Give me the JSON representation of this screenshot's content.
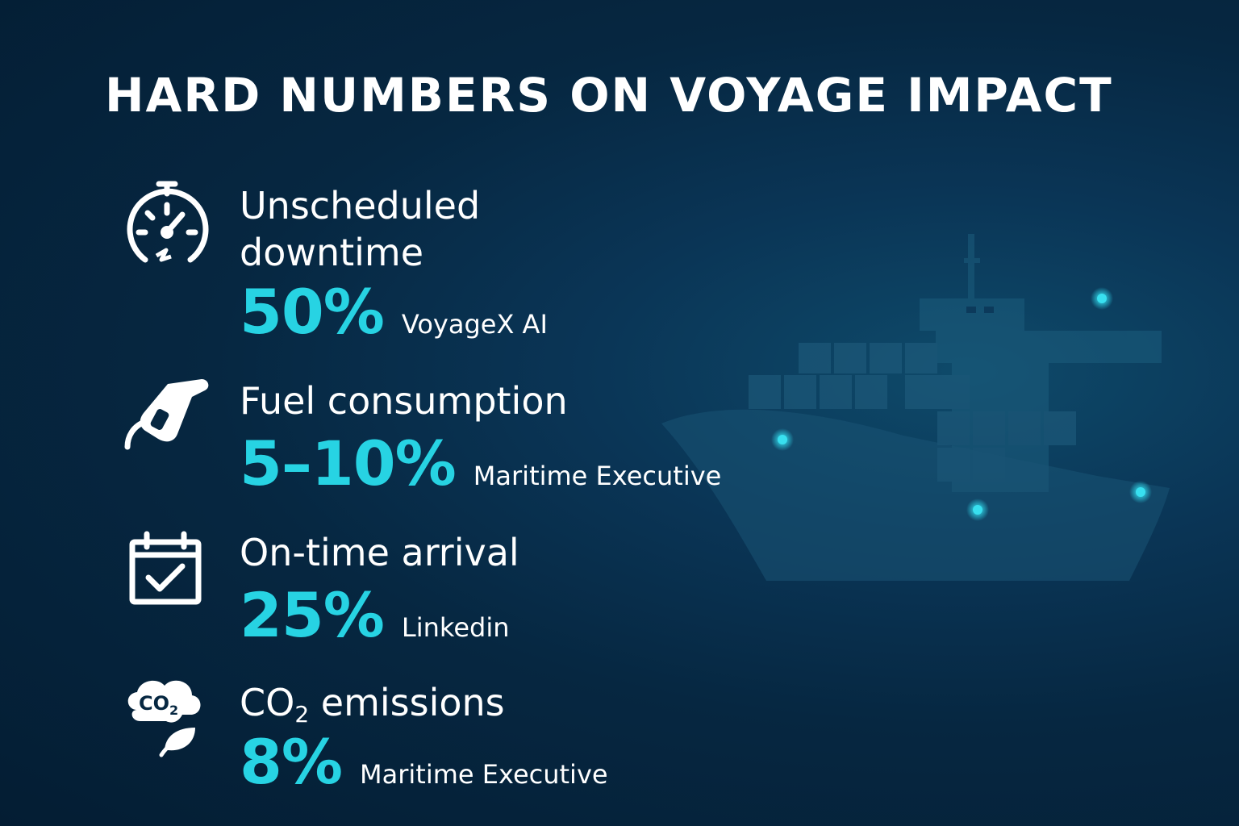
{
  "title": "HARD NUMBERS ON VOYAGE IMPACT",
  "colors": {
    "accent": "#27d3e3",
    "background": "#062741",
    "text": "#ffffff"
  },
  "metrics": [
    {
      "icon": "stopwatch-icon",
      "label_line1": "Unscheduled",
      "label_line2": "downtime",
      "value": "50%",
      "source": "VoyageX AI"
    },
    {
      "icon": "fuel-nozzle-icon",
      "label_line1": "Fuel consumption",
      "value": "5–10%",
      "source": "Maritime Executive"
    },
    {
      "icon": "calendar-check-icon",
      "label_line1": "On-time arrival",
      "value": "25%",
      "source": "Linkedin"
    },
    {
      "icon": "co2-leaf-icon",
      "label_prefix": "CO",
      "label_sub": "2",
      "label_suffix": " emissions",
      "value": "8%",
      "source": "Maritime Executive"
    }
  ]
}
